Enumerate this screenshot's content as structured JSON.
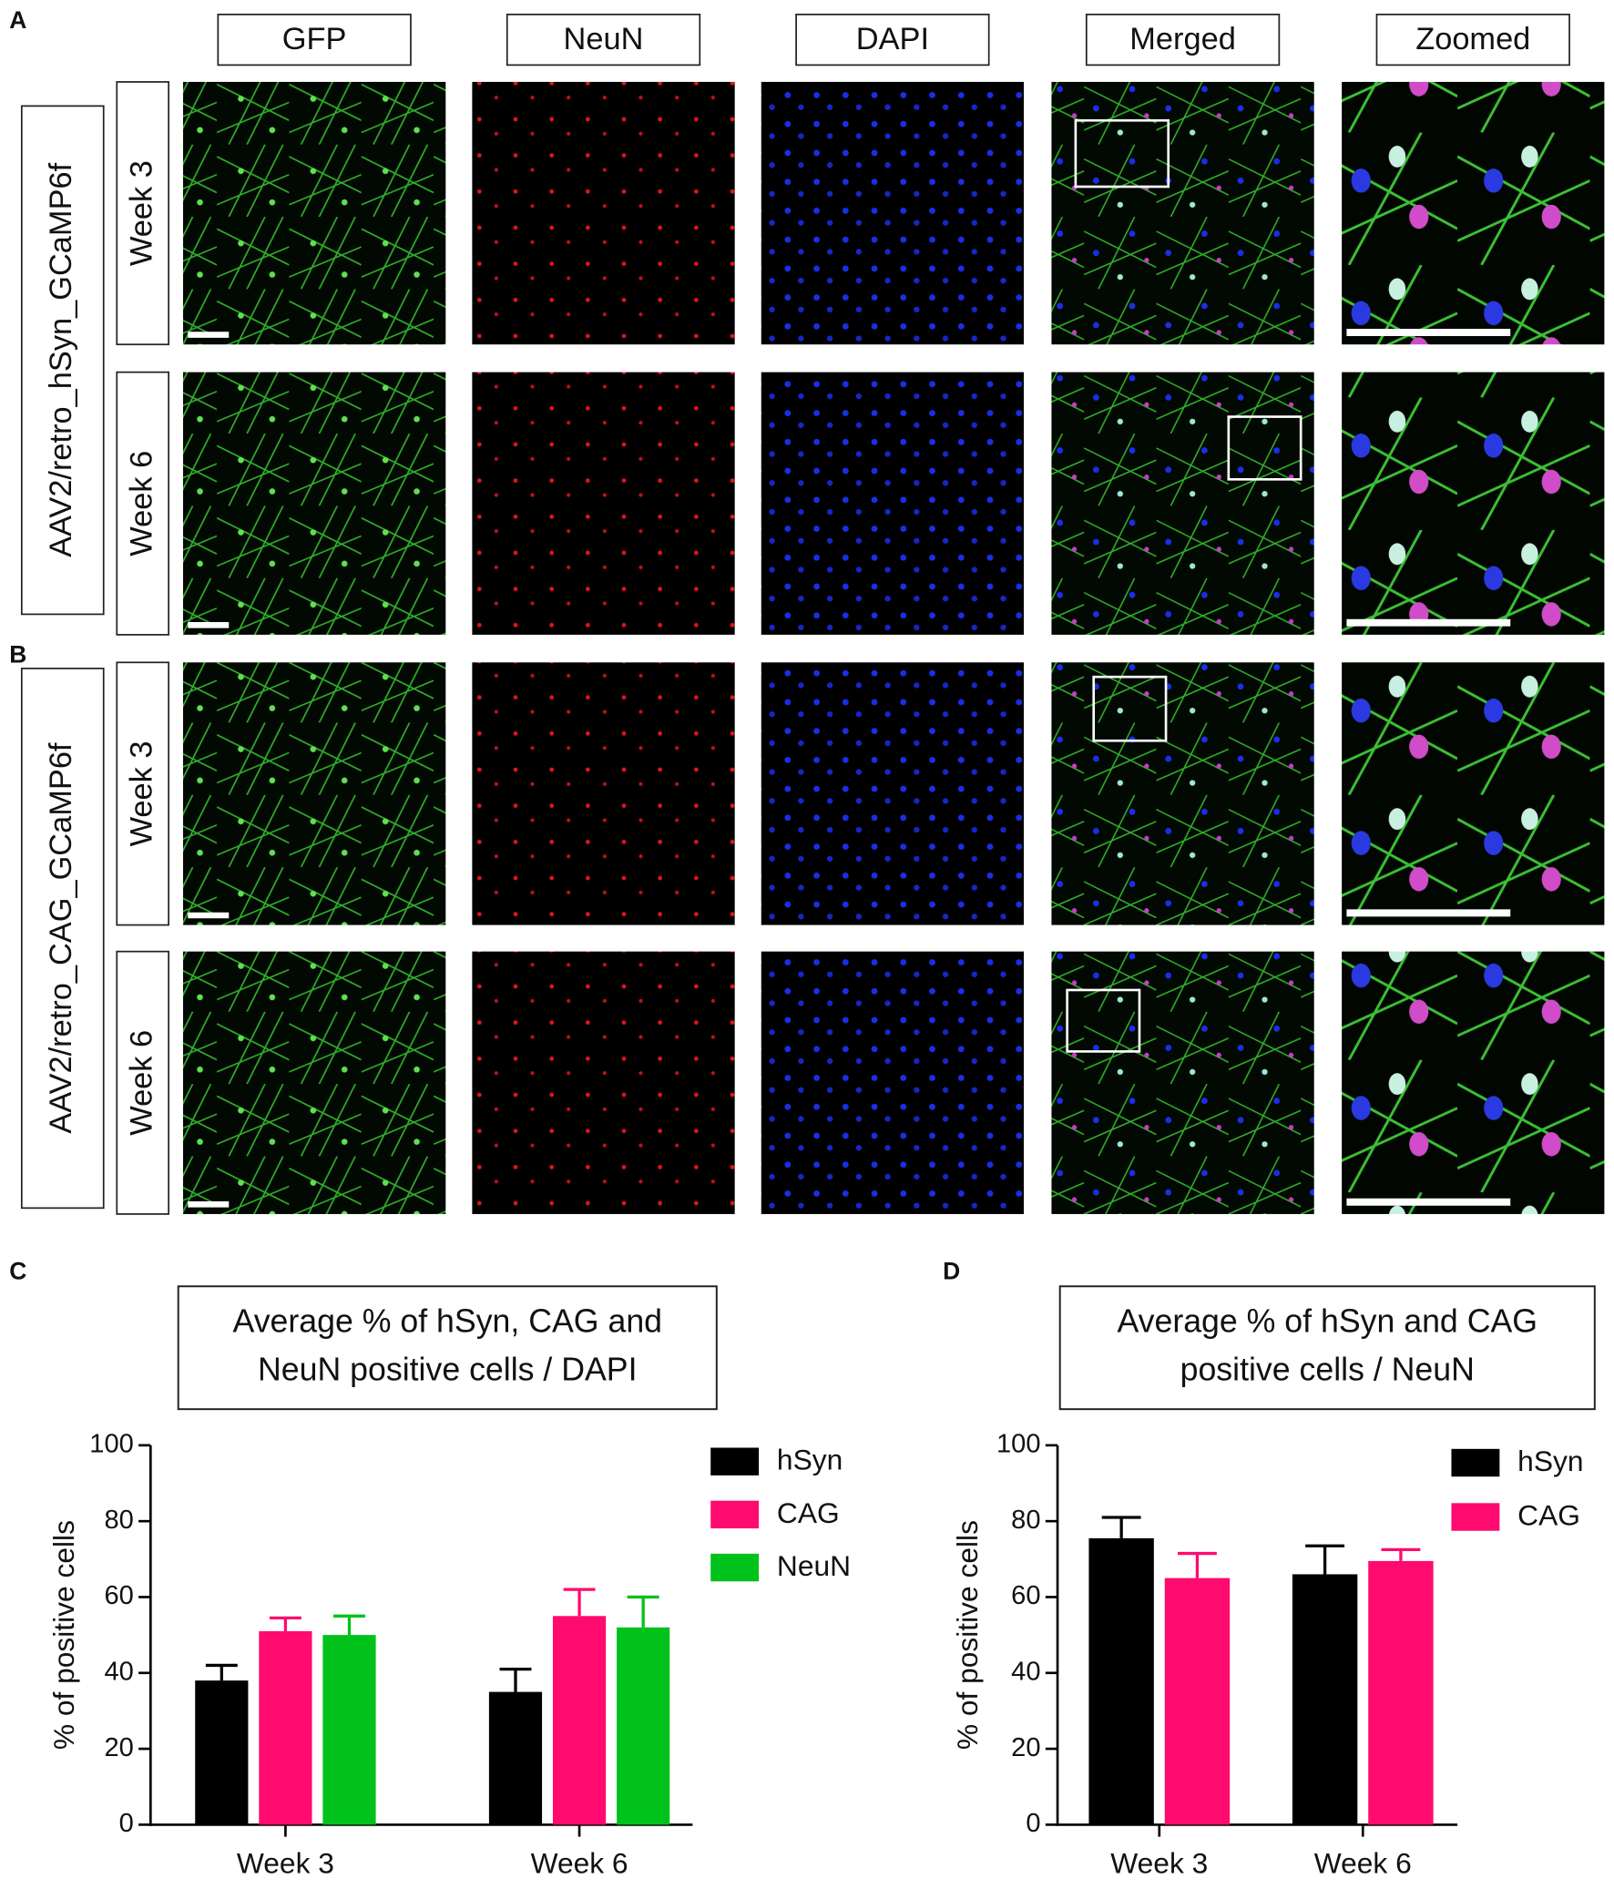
{
  "panels": {
    "letters": [
      "A",
      "B",
      "C",
      "D"
    ],
    "columns": [
      "GFP",
      "NeuN",
      "DAPI",
      "Merged",
      "Zoomed"
    ],
    "groups": [
      {
        "label": "AAV2/retro_hSyn_GCaMP6f",
        "rows": [
          "Week 3",
          "Week 6"
        ]
      },
      {
        "label": "AAV2/retro_CAG_GCaMP6f",
        "rows": [
          "Week 3",
          "Week 6"
        ]
      }
    ]
  },
  "chart_data": [
    {
      "type": "bar",
      "title": [
        "Average % of hSyn, CAG and",
        "NeuN positive cells / DAPI"
      ],
      "y_label": "% of positive cells",
      "categories": [
        "Week 3",
        "Week 6"
      ],
      "series": [
        {
          "name": "hSyn",
          "color": "#000000",
          "values": [
            38,
            35
          ],
          "error": [
            4,
            6
          ]
        },
        {
          "name": "CAG",
          "color": "#ff0a6e",
          "values": [
            51,
            55
          ],
          "error": [
            3.5,
            7
          ]
        },
        {
          "name": "NeuN",
          "color": "#00c21a",
          "values": [
            50,
            52
          ],
          "error": [
            5,
            8
          ]
        }
      ],
      "ylim": [
        0,
        100
      ],
      "yticks": [
        0,
        20,
        40,
        60,
        80,
        100
      ]
    },
    {
      "type": "bar",
      "title": [
        "Average % of hSyn and CAG",
        "positive cells / NeuN"
      ],
      "y_label": "% of positive cells",
      "categories": [
        "Week 3",
        "Week 6"
      ],
      "series": [
        {
          "name": "hSyn",
          "color": "#000000",
          "values": [
            75.5,
            66
          ],
          "error": [
            5.5,
            7.5
          ]
        },
        {
          "name": "CAG",
          "color": "#ff0a6e",
          "values": [
            65,
            69.5
          ],
          "error": [
            6.5,
            3
          ]
        }
      ],
      "ylim": [
        0,
        100
      ],
      "yticks": [
        0,
        20,
        40,
        60,
        80,
        100
      ]
    }
  ]
}
